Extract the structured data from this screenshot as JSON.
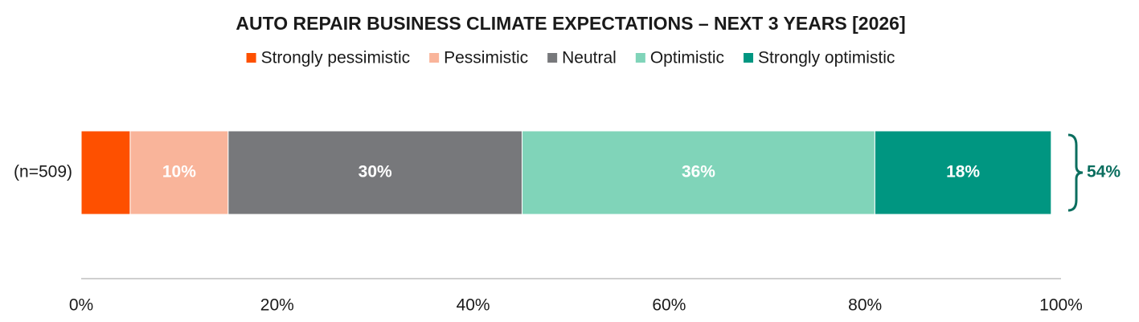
{
  "chart_data": {
    "type": "stacked_bar_horizontal",
    "title": "AUTO REPAIR BUSINESS CLIMATE EXPECTATIONS – NEXT 3 YEARS [2026]",
    "categories": [
      "(n=509)"
    ],
    "series": [
      {
        "name": "Strongly pessimistic",
        "color": "#fe5000",
        "values": [
          5
        ],
        "value_labels": [
          null
        ]
      },
      {
        "name": "Pessimistic",
        "color": "#f9b49a",
        "values": [
          10
        ],
        "value_labels": [
          "10%"
        ]
      },
      {
        "name": "Neutral",
        "color": "#77787b",
        "values": [
          30
        ],
        "value_labels": [
          "30%"
        ]
      },
      {
        "name": "Optimistic",
        "color": "#80d4b9",
        "values": [
          36
        ],
        "value_labels": [
          "36%"
        ]
      },
      {
        "name": "Strongly optimistic",
        "color": "#009681",
        "values": [
          18
        ],
        "value_labels": [
          "18%"
        ]
      }
    ],
    "annotations": [
      {
        "text": "54%",
        "color": "#0b6e5f"
      }
    ],
    "xlim": [
      0,
      100
    ],
    "xticks": [
      {
        "value": 0,
        "label": "0%"
      },
      {
        "value": 20,
        "label": "20%"
      },
      {
        "value": 40,
        "label": "40%"
      },
      {
        "value": 60,
        "label": "60%"
      },
      {
        "value": 80,
        "label": "80%"
      },
      {
        "value": 100,
        "label": "100%"
      }
    ],
    "legend": "top"
  }
}
